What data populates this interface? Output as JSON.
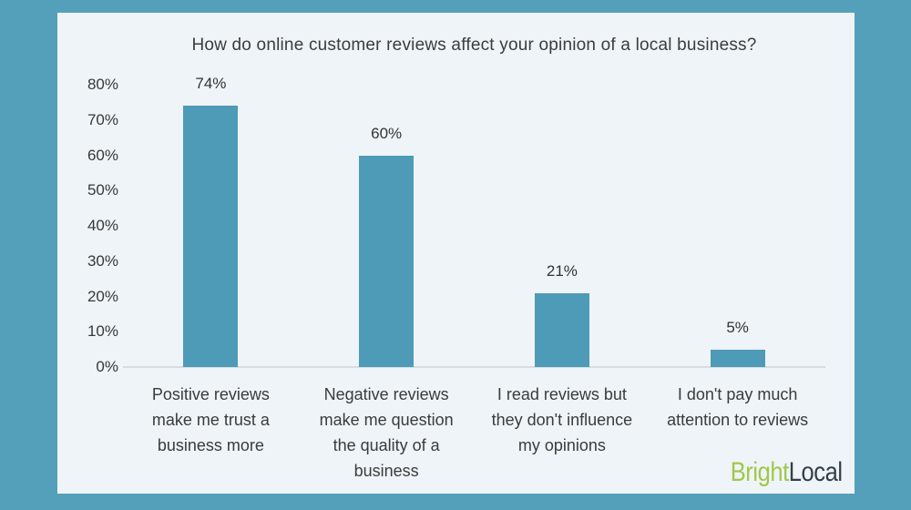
{
  "page": {
    "background_color": "#54a0ba",
    "card_background": "#eff4f8"
  },
  "chart_data": {
    "type": "bar",
    "title": "How do online customer reviews affect your opinion of a local business?",
    "categories": [
      "Positive reviews make me trust a business more",
      "Negative reviews make me question the quality of a business",
      "I read reviews but they don't influence my opinions",
      "I don't pay much attention to reviews"
    ],
    "category_lines": [
      [
        "Positive reviews",
        "make me trust a",
        "business more"
      ],
      [
        "Negative reviews",
        "make me question",
        "the quality of a",
        "business"
      ],
      [
        "I read reviews but",
        "they don't influence",
        "my opinions"
      ],
      [
        "I don't pay much",
        "attention to reviews"
      ]
    ],
    "values": [
      74,
      60,
      21,
      5
    ],
    "value_labels": [
      "74%",
      "60%",
      "21%",
      "5%"
    ],
    "xlabel": "",
    "ylabel": "",
    "ylim": [
      0,
      80
    ],
    "ytick_values": [
      0,
      10,
      20,
      30,
      40,
      50,
      60,
      70,
      80
    ],
    "ytick_labels": [
      "0%",
      "10%",
      "20%",
      "30%",
      "40%",
      "50%",
      "60%",
      "70%",
      "80%"
    ],
    "grid": false,
    "legend": "none",
    "bar_color": "#4d9bb7",
    "axis_line_color": "#d8dcdd",
    "text_color": "#3c3c3c"
  },
  "branding": {
    "logo_text_green": "Bright",
    "logo_text_dark": "Local",
    "green_color": "#9fc84c",
    "dark_color": "#333f48"
  }
}
